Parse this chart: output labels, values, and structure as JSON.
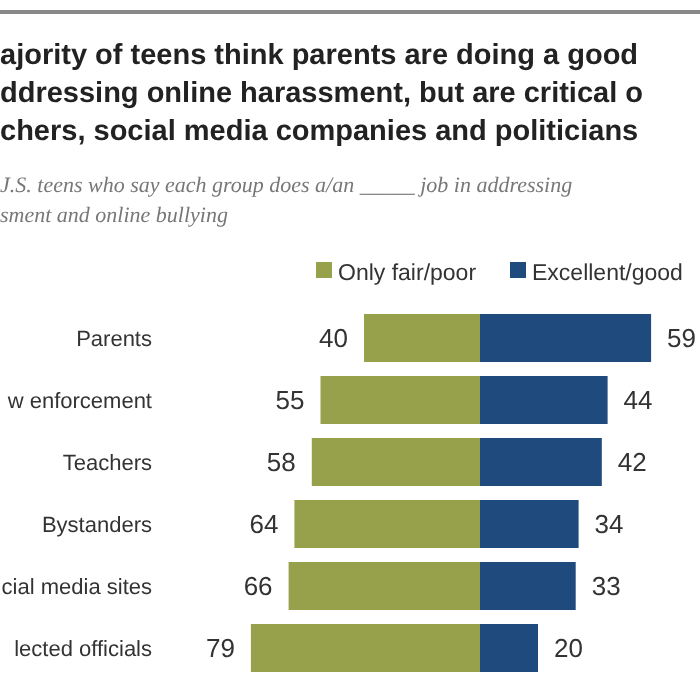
{
  "chart_data": [
    {
      "type": "bar",
      "orientation": "horizontal",
      "title": "ajority of teens think parents are doing a good\nddressing online harassment, but are critical o\nchers, social media companies and politicians",
      "subtitle": "J.S. teens who say each group does a/an _____ job in addressing\nsment and online bullying",
      "categories": [
        "Parents",
        "w enforcement",
        "Teachers",
        "Bystanders",
        "cial media sites",
        "lected officials"
      ],
      "series": [
        {
          "name": "Only fair/poor",
          "color": "#97a04a",
          "values": [
            40,
            55,
            58,
            64,
            66,
            79
          ]
        }
      ],
      "tick_labels": "y",
      "data_labels": true,
      "legend": "top"
    },
    {
      "type": "bar",
      "orientation": "horizontal",
      "series": [
        {
          "name": "Excellent/good",
          "color": "#1f4a7d",
          "values": [
            59,
            44,
            42,
            34,
            33,
            20
          ]
        }
      ],
      "data_labels": true,
      "legend": "top"
    }
  ]
}
